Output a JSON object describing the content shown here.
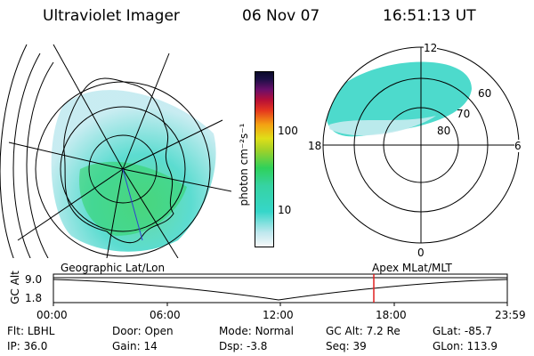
{
  "header": {
    "title": "Ultraviolet Imager",
    "date": "06 Nov 07",
    "time": "16:51:13 UT"
  },
  "colorbar": {
    "unit": "photon cm⁻²s⁻¹",
    "ticks": [
      "100",
      "10"
    ]
  },
  "polar_plot": {
    "mlt_labels": {
      "top": "12",
      "bottom": "0",
      "left": "18",
      "right": "6"
    },
    "lat_labels": [
      "60",
      "70",
      "80"
    ]
  },
  "timeline": {
    "axis_label": "GC Alt",
    "y_ticks": [
      "9.0",
      "1.8"
    ],
    "left_title": "Geographic Lat/Lon",
    "right_title": "Apex MLat/MLT",
    "x_ticks": [
      "00:00",
      "06:00",
      "12:00",
      "18:00",
      "23:59"
    ]
  },
  "footer": {
    "row1": [
      {
        "label": "Flt:",
        "value": "LBHL"
      },
      {
        "label": "Door:",
        "value": "Open"
      },
      {
        "label": "Mode:",
        "value": "Normal"
      },
      {
        "label": "GC Alt:",
        "value": "7.2 Re"
      },
      {
        "label": "GLat:",
        "value": "-85.7"
      }
    ],
    "row2": [
      {
        "label": "IP:",
        "value": "36.0"
      },
      {
        "label": "Gain:",
        "value": "14"
      },
      {
        "label": "Dsp:",
        "value": "-3.8"
      },
      {
        "label": "Seq:",
        "value": "39"
      },
      {
        "label": "GLon:",
        "value": "113.9"
      }
    ]
  }
}
